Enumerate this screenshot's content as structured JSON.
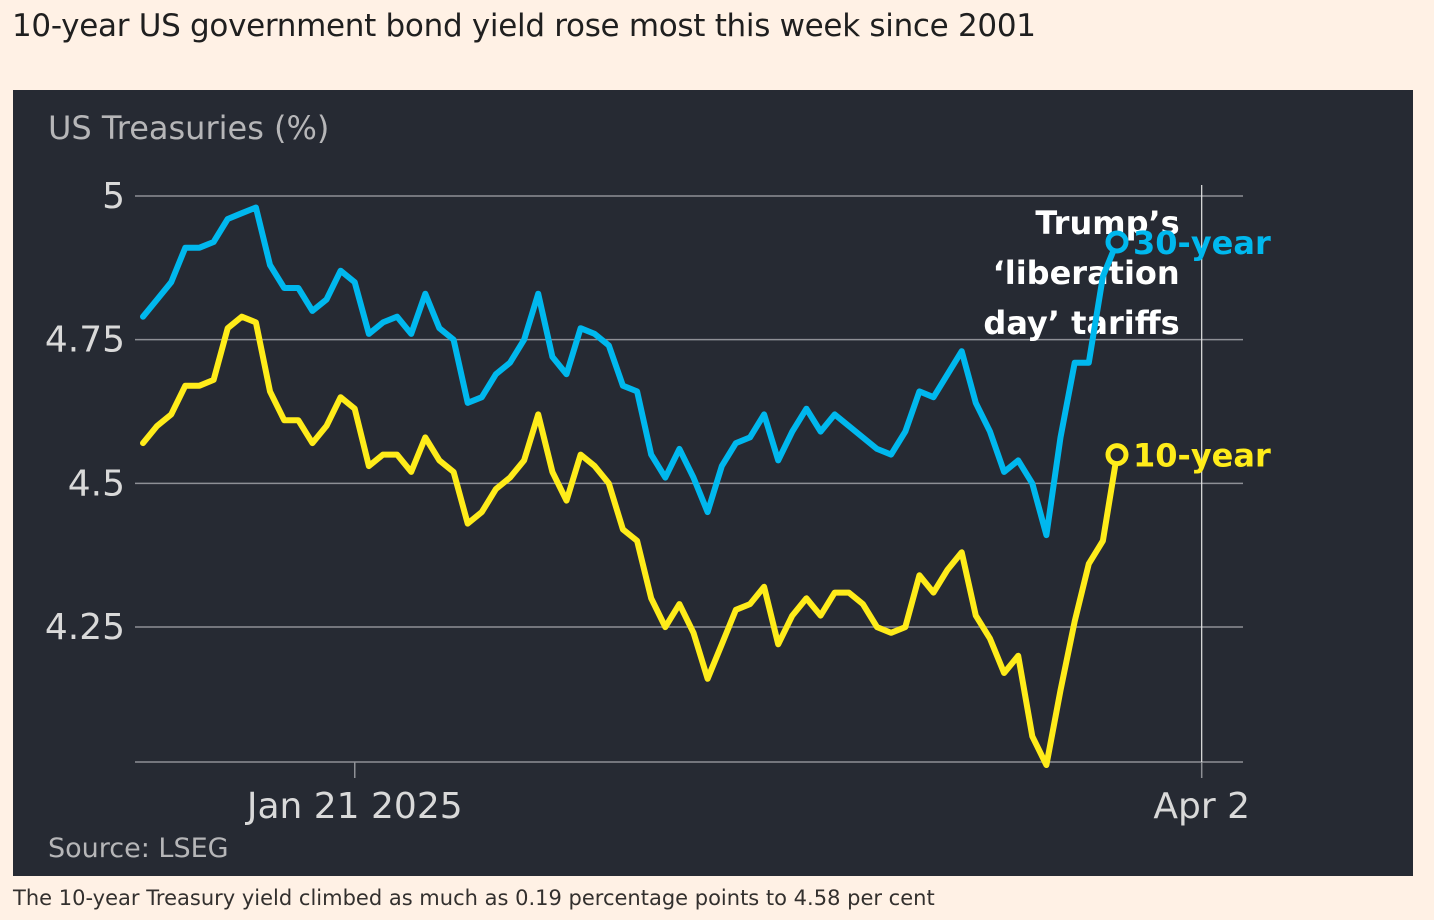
{
  "headline": "10-year US government bond yield rose most this week since 2001",
  "caption": "The 10-year Treasury yield climbed as much as 0.19 percentage points to 4.58 per cent",
  "colors": {
    "background": "#fff1e5",
    "panel": "#262a33",
    "grid": "#8e9096",
    "axis_text": "#d9d9d9",
    "muted_text": "#b6b6b8",
    "annotation": "#ffffff",
    "thirty_year": "#00b8ee",
    "ten_year": "#ffec1a"
  },
  "chart_data": {
    "type": "line",
    "title": "US Treasuries (%)",
    "source": "Source: LSEG",
    "y_ticks": [
      "5",
      "4.75",
      "4.5",
      "4.25"
    ],
    "y_tick_values": [
      5,
      4.75,
      4.5,
      4.25
    ],
    "ylim": [
      4.01,
      5.0
    ],
    "x_ticks": [
      {
        "label": "Jan 21 2025",
        "index": 15
      },
      {
        "label": "Apr 2",
        "index": 75
      }
    ],
    "annotation": {
      "lines": [
        "Trump’s",
        "‘liberation",
        "day’ tariffs"
      ],
      "index": 75
    },
    "grid": "horizontal",
    "series": [
      {
        "name": "30-year",
        "key": "thirty_year",
        "values": [
          4.79,
          4.82,
          4.85,
          4.91,
          4.91,
          4.92,
          4.96,
          4.97,
          4.98,
          4.88,
          4.84,
          4.84,
          4.8,
          4.82,
          4.87,
          4.85,
          4.76,
          4.78,
          4.79,
          4.76,
          4.83,
          4.77,
          4.75,
          4.64,
          4.65,
          4.69,
          4.71,
          4.75,
          4.83,
          4.72,
          4.69,
          4.77,
          4.76,
          4.74,
          4.67,
          4.66,
          4.55,
          4.51,
          4.56,
          4.51,
          4.45,
          4.53,
          4.57,
          4.58,
          4.62,
          4.54,
          4.59,
          4.63,
          4.59,
          4.62,
          4.6,
          4.58,
          4.56,
          4.55,
          4.59,
          4.66,
          4.65,
          4.69,
          4.73,
          4.64,
          4.59,
          4.52,
          4.54,
          4.5,
          4.41,
          4.58,
          4.71,
          4.71,
          4.86,
          4.92
        ]
      },
      {
        "name": "10-year",
        "key": "ten_year",
        "values": [
          4.57,
          4.6,
          4.62,
          4.67,
          4.67,
          4.68,
          4.77,
          4.79,
          4.78,
          4.66,
          4.61,
          4.61,
          4.57,
          4.6,
          4.65,
          4.63,
          4.53,
          4.55,
          4.55,
          4.52,
          4.58,
          4.54,
          4.52,
          4.43,
          4.45,
          4.49,
          4.51,
          4.54,
          4.62,
          4.52,
          4.47,
          4.55,
          4.53,
          4.5,
          4.42,
          4.4,
          4.3,
          4.25,
          4.29,
          4.24,
          4.16,
          4.22,
          4.28,
          4.29,
          4.32,
          4.22,
          4.27,
          4.3,
          4.27,
          4.31,
          4.31,
          4.29,
          4.25,
          4.24,
          4.25,
          4.34,
          4.31,
          4.35,
          4.38,
          4.27,
          4.23,
          4.17,
          4.2,
          4.06,
          4.01,
          4.14,
          4.26,
          4.36,
          4.4,
          4.55
        ]
      }
    ]
  }
}
